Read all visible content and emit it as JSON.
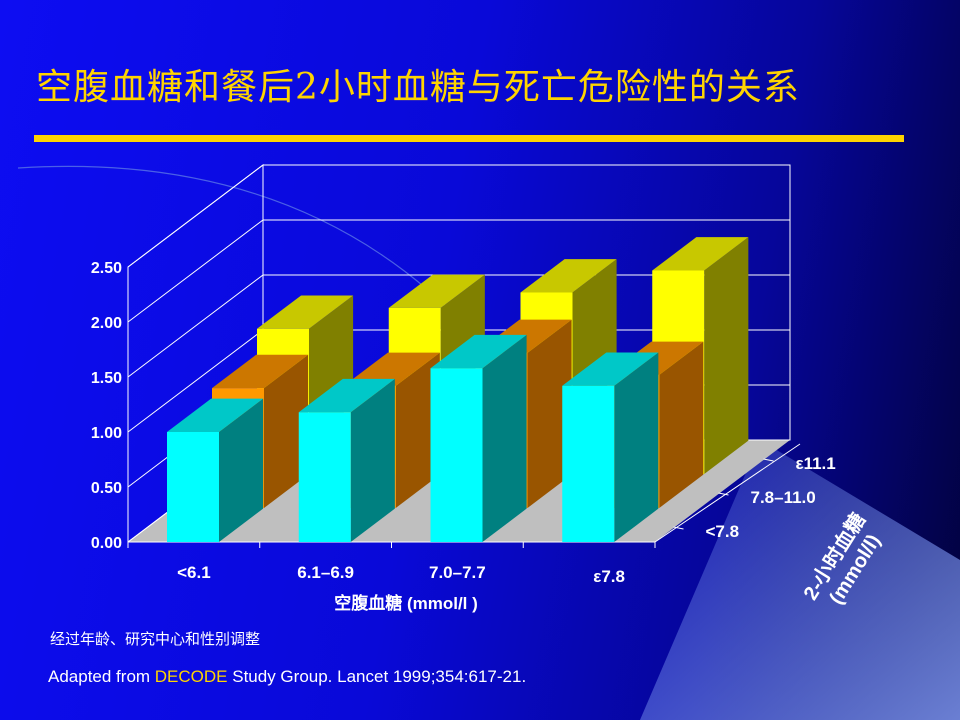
{
  "slide": {
    "title": "空腹血糖和餐后2小时血糖与死亡危险性的关系",
    "note": "经过年龄、研究中心和性别调整",
    "source_prefix": "Adapted from ",
    "source_highlight": "DECODE",
    "source_suffix": " Study Group. Lancet 1999;354:617-21."
  },
  "colors": {
    "title": "#ffd400",
    "text": "#ffffff",
    "floor": "#bfbfbf",
    "wall_lines": "#ffffff"
  },
  "chart_data": {
    "type": "bar",
    "subtype": "3d-grouped",
    "categories": [
      "<6.1",
      "6.1–6.9",
      "7.0–7.7",
      "ε7.8"
    ],
    "xlabel": "空腹血糖 (mmol/l )",
    "zlabel": "2-小时血糖 (mmol/l)",
    "ylim": [
      0,
      2.5
    ],
    "yticks": [
      "0.00",
      "0.50",
      "1.00",
      "1.50",
      "2.00",
      "2.50"
    ],
    "series": [
      {
        "name": "<7.8",
        "values": [
          1.0,
          1.18,
          1.58,
          1.42
        ],
        "front": "#00ffff",
        "top": "#00c8c8",
        "side": "#008080"
      },
      {
        "name": "7.8–11.0",
        "values": [
          1.09,
          1.11,
          1.41,
          1.21
        ],
        "front": "#ff9900",
        "top": "#cc7700",
        "side": "#995500"
      },
      {
        "name": "ε11.1",
        "values": [
          1.32,
          1.51,
          1.65,
          1.85
        ],
        "front": "#ffff00",
        "top": "#c8c800",
        "side": "#808000"
      }
    ]
  }
}
